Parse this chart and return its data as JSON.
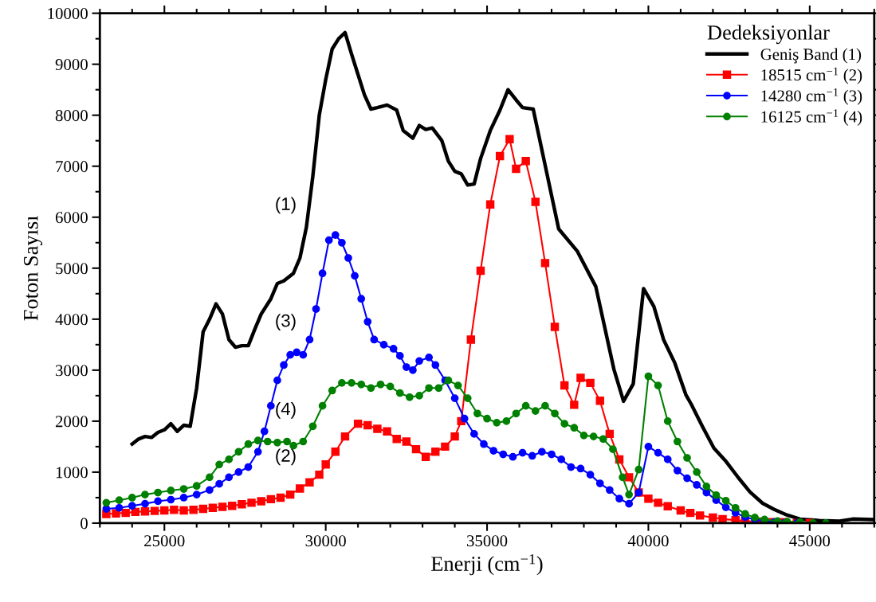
{
  "chart_data": {
    "type": "line",
    "xlabel": "Enerji (cm$^{−1}$)",
    "ylabel": "Foton Sayısı",
    "legend_title": "Dedeksiyonlar",
    "legend": "top right",
    "grid": false,
    "xlim": [
      23000,
      47000
    ],
    "xticks": [
      25000,
      30000,
      35000,
      40000,
      45000
    ],
    "ylim": [
      0,
      10000
    ],
    "yticks": [
      0,
      1000,
      2000,
      3000,
      4000,
      5000,
      6000,
      7000,
      8000,
      9000,
      10000
    ],
    "annotations": [
      "(1)",
      "(2)",
      "(3)",
      "(4)"
    ],
    "series": [
      {
        "name": "Geniş Band (1)",
        "color": "#000000",
        "marker": "none",
        "x": [
          24000,
          24200,
          24400,
          24600,
          24800,
          25000,
          25200,
          25400,
          25600,
          25800,
          26000,
          26200,
          26400,
          26600,
          26800,
          27000,
          27200,
          27400,
          27600,
          27800,
          28000,
          28300,
          28500,
          28700,
          29000,
          29200,
          29400,
          29600,
          29800,
          30000,
          30200,
          30400,
          30600,
          30800,
          31000,
          31200,
          31400,
          31600,
          31900,
          32200,
          32400,
          32700,
          32900,
          33100,
          33300,
          33600,
          33800,
          34000,
          34200,
          34400,
          34600,
          34800,
          35100,
          35400,
          35650,
          35900,
          36100,
          36430,
          37220,
          37800,
          38370,
          38930,
          39230,
          39530,
          39850,
          40170,
          40470,
          40820,
          41160,
          41330,
          41680,
          42030,
          42380,
          42790,
          43150,
          43540,
          43900,
          44290,
          44700,
          45300,
          45920,
          46330,
          47000
        ],
        "values": [
          1550,
          1650,
          1700,
          1680,
          1780,
          1830,
          1950,
          1800,
          1920,
          1900,
          2650,
          3750,
          4000,
          4300,
          4100,
          3600,
          3450,
          3480,
          3480,
          3800,
          4100,
          4400,
          4700,
          4750,
          4900,
          5200,
          5800,
          6800,
          8000,
          8700,
          9300,
          9500,
          9620,
          9200,
          8800,
          8400,
          8120,
          8150,
          8200,
          8100,
          7700,
          7550,
          7800,
          7720,
          7750,
          7500,
          7100,
          6900,
          6850,
          6630,
          6650,
          7150,
          7700,
          8100,
          8500,
          8300,
          8150,
          8120,
          5770,
          5330,
          4640,
          3020,
          2390,
          2730,
          4600,
          4250,
          3600,
          3140,
          2520,
          2330,
          1890,
          1470,
          1230,
          890,
          610,
          390,
          270,
          160,
          80,
          50,
          40,
          80,
          70
        ]
      },
      {
        "name": "18515 cm$^{−1}$ (2)",
        "color": "#ff0000",
        "marker": "square",
        "x": [
          23200,
          23500,
          23800,
          24100,
          24400,
          24700,
          25000,
          25300,
          25600,
          25900,
          26200,
          26500,
          26800,
          27100,
          27400,
          27700,
          28000,
          28300,
          28600,
          28900,
          29200,
          29500,
          29800,
          30000,
          30300,
          30600,
          31000,
          31300,
          31600,
          31900,
          32200,
          32500,
          32800,
          33100,
          33400,
          33700,
          34000,
          34200,
          34500,
          34800,
          35100,
          35400,
          35700,
          35900,
          36200,
          36500,
          36800,
          37100,
          37400,
          37700,
          37900,
          38200,
          38500,
          38800,
          39100,
          39400,
          39700,
          40000,
          40300,
          40600,
          41000,
          41300,
          41600,
          42000,
          42300,
          42700,
          43000,
          43400,
          43800,
          44200,
          44600,
          45000
        ],
        "values": [
          180,
          190,
          200,
          220,
          230,
          240,
          250,
          260,
          250,
          260,
          280,
          300,
          320,
          340,
          370,
          400,
          430,
          470,
          500,
          560,
          680,
          800,
          950,
          1150,
          1400,
          1700,
          1950,
          1920,
          1850,
          1800,
          1650,
          1600,
          1450,
          1300,
          1400,
          1500,
          1700,
          2000,
          3600,
          4950,
          6250,
          7200,
          7530,
          6950,
          7100,
          6300,
          5100,
          3850,
          2700,
          2320,
          2850,
          2750,
          2400,
          1750,
          1250,
          900,
          600,
          480,
          400,
          330,
          250,
          200,
          150,
          110,
          80,
          60,
          40,
          30,
          20,
          20,
          0,
          0
        ]
      },
      {
        "name": "14280 cm$^{−1}$ (3)",
        "color": "#0000ff",
        "marker": "circle",
        "x": [
          23200,
          23600,
          24000,
          24400,
          24800,
          25200,
          25600,
          26000,
          26400,
          26700,
          27000,
          27300,
          27600,
          27900,
          28100,
          28300,
          28500,
          28700,
          28900,
          29100,
          29300,
          29500,
          29700,
          29900,
          30100,
          30300,
          30500,
          30700,
          30900,
          31100,
          31300,
          31500,
          31800,
          32100,
          32300,
          32500,
          32700,
          32900,
          33200,
          33400,
          33700,
          34000,
          34300,
          34600,
          34900,
          35200,
          35500,
          35800,
          36100,
          36400,
          36700,
          37000,
          37300,
          37600,
          37900,
          38200,
          38500,
          38800,
          39100,
          39400,
          39700,
          40000,
          40300,
          40600,
          40900,
          41200,
          41500,
          41800,
          42100,
          42400,
          42700,
          43000,
          43300,
          43600,
          43900,
          44200,
          44600
        ],
        "values": [
          280,
          300,
          340,
          380,
          430,
          460,
          500,
          560,
          650,
          770,
          900,
          1000,
          1100,
          1400,
          1800,
          2300,
          2800,
          3100,
          3300,
          3350,
          3300,
          3600,
          4200,
          4900,
          5550,
          5650,
          5500,
          5200,
          4850,
          4400,
          3950,
          3600,
          3500,
          3420,
          3280,
          3060,
          3000,
          3180,
          3250,
          3100,
          2800,
          2450,
          2050,
          1750,
          1550,
          1420,
          1350,
          1300,
          1380,
          1320,
          1400,
          1350,
          1250,
          1100,
          1070,
          950,
          780,
          650,
          480,
          380,
          600,
          1500,
          1380,
          1250,
          1030,
          880,
          750,
          600,
          450,
          310,
          200,
          120,
          70,
          40,
          20,
          0,
          0
        ]
      },
      {
        "name": "16125 cm$^{−1}$ (4)",
        "color": "#008000",
        "marker": "circle",
        "x": [
          23200,
          23600,
          24000,
          24400,
          24800,
          25200,
          25600,
          26000,
          26400,
          26700,
          27000,
          27300,
          27600,
          27900,
          28200,
          28500,
          28800,
          29000,
          29300,
          29600,
          29900,
          30200,
          30500,
          30800,
          31100,
          31400,
          31700,
          32000,
          32300,
          32600,
          32900,
          33200,
          33500,
          33800,
          34100,
          34400,
          34700,
          35000,
          35300,
          35600,
          35900,
          36200,
          36500,
          36800,
          37100,
          37400,
          37700,
          38000,
          38300,
          38600,
          38900,
          39200,
          39400,
          39700,
          40000,
          40300,
          40600,
          40900,
          41200,
          41500,
          41800,
          42100,
          42400,
          42700,
          43000,
          43300,
          43600,
          44000,
          44300,
          44700,
          45100,
          45500
        ],
        "values": [
          400,
          450,
          500,
          560,
          600,
          640,
          670,
          730,
          900,
          1150,
          1250,
          1400,
          1550,
          1620,
          1600,
          1580,
          1600,
          1520,
          1600,
          1900,
          2300,
          2600,
          2750,
          2750,
          2720,
          2650,
          2720,
          2680,
          2550,
          2470,
          2500,
          2650,
          2650,
          2800,
          2700,
          2450,
          2150,
          2050,
          1970,
          2000,
          2150,
          2300,
          2200,
          2300,
          2150,
          1950,
          1870,
          1720,
          1700,
          1650,
          1450,
          900,
          560,
          1050,
          2880,
          2700,
          2000,
          1600,
          1280,
          1000,
          720,
          550,
          440,
          300,
          180,
          110,
          70,
          40,
          30,
          20,
          0,
          0
        ]
      }
    ]
  }
}
